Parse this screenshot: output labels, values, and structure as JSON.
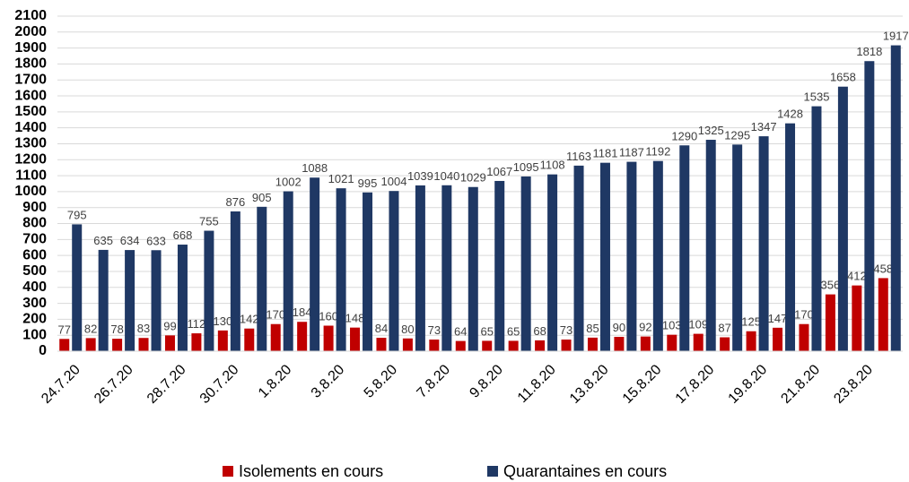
{
  "chart_data": {
    "type": "bar",
    "categories": [
      "24.7.20",
      null,
      "26.7.20",
      null,
      "28.7.20",
      null,
      "30.7.20",
      null,
      "1.8.20",
      null,
      "3.8.20",
      null,
      "5.8.20",
      null,
      "7.8.20",
      null,
      "9.8.20",
      null,
      "11.8.20",
      null,
      "13.8.20",
      null,
      "15.8.20",
      null,
      "17.8.20",
      null,
      "19.8.20",
      null,
      "21.8.20",
      null,
      "23.8.20",
      null
    ],
    "series": [
      {
        "name": "Isolements en cours",
        "color": "#c00000",
        "values": [
          77,
          82,
          78,
          83,
          99,
          112,
          130,
          142,
          170,
          184,
          160,
          148,
          84,
          80,
          73,
          64,
          65,
          65,
          68,
          73,
          85,
          90,
          92,
          103,
          109,
          87,
          125,
          147,
          170,
          356,
          412,
          458
        ]
      },
      {
        "name": "Quarantaines en cours",
        "color": "#1f3864",
        "values": [
          795,
          635,
          634,
          633,
          668,
          755,
          876,
          905,
          1002,
          1088,
          1021,
          995,
          1004,
          1039,
          1040,
          1029,
          1067,
          1095,
          1108,
          1163,
          1181,
          1187,
          1192,
          1290,
          1325,
          1295,
          1347,
          1428,
          1535,
          1658,
          1818,
          1917
        ]
      }
    ],
    "ylim": [
      0,
      2100
    ],
    "yticks": [
      0,
      100,
      200,
      300,
      400,
      500,
      600,
      700,
      800,
      900,
      1000,
      1100,
      1200,
      1300,
      1400,
      1500,
      1600,
      1700,
      1800,
      1900,
      2000,
      2100
    ],
    "grid": true,
    "legend": "bottom"
  }
}
